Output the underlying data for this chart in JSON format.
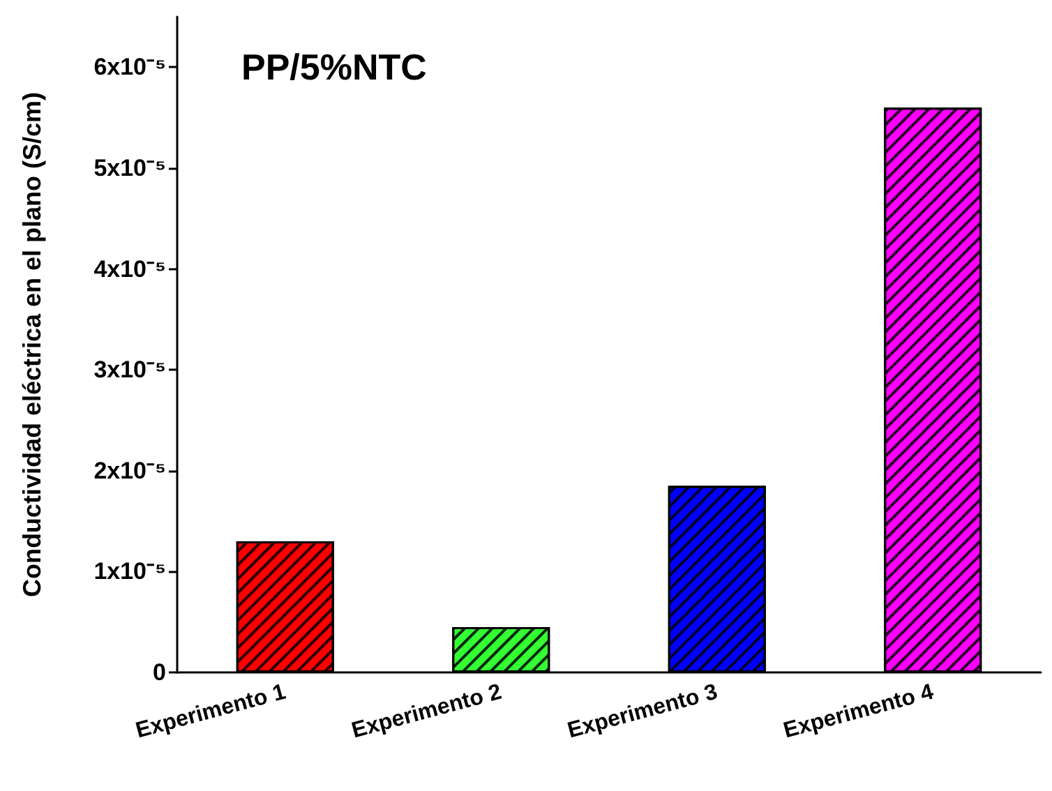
{
  "chart_data": {
    "type": "bar",
    "title": "PP/5%NTC",
    "ylabel": "Conductividad eléctrica en el plano (S/cm)",
    "categories": [
      "Experimento 1",
      "Experimento 2",
      "Experimento 3",
      "Experimento 4"
    ],
    "values": [
      1.3e-05,
      4.5e-06,
      1.85e-05,
      5.6e-05
    ],
    "colors": [
      "#ff0000",
      "#33ff33",
      "#0000ff",
      "#ff00ff"
    ],
    "ylim": [
      0,
      6.5e-05
    ],
    "yticks": [
      0,
      {
        "value": 1e-05,
        "label": "1x10⁻⁵"
      },
      {
        "value": 2e-05,
        "label": "2x10⁻⁵"
      },
      {
        "value": 3e-05,
        "label": "3x10⁻⁵"
      },
      {
        "value": 4e-05,
        "label": "4x10⁻⁵"
      },
      {
        "value": 5e-05,
        "label": "5x10⁻⁵"
      },
      {
        "value": 6e-05,
        "label": "6x10⁻⁵"
      }
    ],
    "grid": false
  }
}
